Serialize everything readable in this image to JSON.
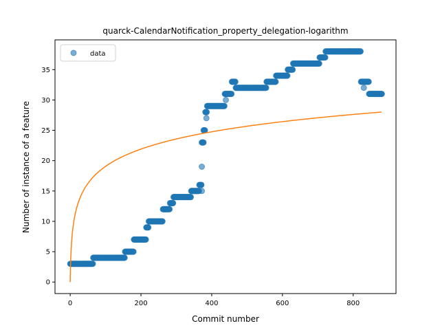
{
  "chart_data": {
    "type": "scatter",
    "title": "quarck-CalendarNotification_property_delegation-logarithm",
    "xlabel": "Commit number",
    "ylabel": "Number of instance of a feature",
    "xlim": [
      -43,
      921
    ],
    "ylim": [
      -1.9,
      39.9
    ],
    "xticks": [
      0,
      200,
      400,
      600,
      800
    ],
    "yticks": [
      0,
      5,
      10,
      15,
      20,
      25,
      30,
      35
    ],
    "grid": false,
    "legend": {
      "position": "top-left",
      "entries": [
        {
          "label": "data"
        }
      ]
    },
    "colors": {
      "data": "#1f77b4",
      "fit": "#ff7f0e"
    },
    "series": [
      {
        "name": "data",
        "kind": "scatter",
        "steps": [
          [
            0,
            65,
            3
          ],
          [
            65,
            155,
            4
          ],
          [
            155,
            180,
            5
          ],
          [
            180,
            215,
            7
          ],
          [
            215,
            222,
            9
          ],
          [
            222,
            262,
            10
          ],
          [
            262,
            282,
            12
          ],
          [
            282,
            292,
            13
          ],
          [
            292,
            342,
            14
          ],
          [
            342,
            365,
            15
          ],
          [
            365,
            372,
            16
          ],
          [
            372,
            377,
            23
          ],
          [
            377,
            382,
            25
          ],
          [
            382,
            387,
            28
          ],
          [
            387,
            437,
            29
          ],
          [
            437,
            457,
            31
          ],
          [
            457,
            468,
            33
          ],
          [
            468,
            555,
            32
          ],
          [
            555,
            582,
            33
          ],
          [
            582,
            615,
            34
          ],
          [
            615,
            630,
            35
          ],
          [
            630,
            705,
            36
          ],
          [
            705,
            722,
            37
          ],
          [
            722,
            822,
            38
          ],
          [
            822,
            845,
            33
          ],
          [
            845,
            882,
            31
          ]
        ],
        "extra_points": [
          [
            372,
            19
          ],
          [
            377,
            23
          ],
          [
            385,
            27
          ],
          [
            372,
            15
          ],
          [
            440,
            30
          ],
          [
            830,
            32
          ]
        ]
      },
      {
        "name": "",
        "kind": "line",
        "model": "a*ln(1+x)",
        "a": 4.13,
        "x_range": [
          0,
          880
        ]
      }
    ]
  }
}
